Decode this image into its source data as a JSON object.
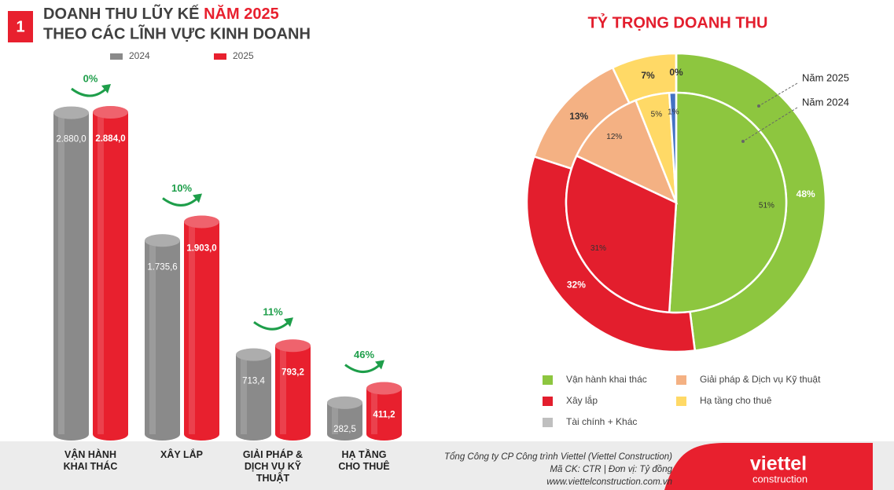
{
  "badge": "1",
  "chart_data": [
    {
      "type": "bar",
      "title": "DOANH THU LŨY KẾ ",
      "title_highlight": "NĂM 2025",
      "subtitle": "THEO CÁC LĨNH VỰC KINH DOANH",
      "categories": [
        "VẬN HÀNH KHAI THÁC",
        "XÂY LẮP",
        "GIẢI PHÁP & DỊCH VỤ KỸ THUẬT",
        "HẠ TẦNG CHO THUÊ"
      ],
      "series": [
        {
          "name": "2024",
          "color": "#8a8a8a",
          "values": [
            2880,
            1735.6,
            713.4,
            282.5
          ],
          "value_labels": [
            "2.880,0",
            "1.735,6",
            "713,4",
            "282,5"
          ]
        },
        {
          "name": "2025",
          "color": "#e8202e",
          "values": [
            2884,
            1903,
            793.2,
            411.2
          ],
          "value_labels": [
            "2.884,0",
            "1.903,0",
            "793,2",
            "411,2"
          ]
        }
      ],
      "growth": {
        "color": "#1e9e4a",
        "values": [
          0,
          10,
          11,
          46
        ],
        "value_labels": [
          "0%",
          "10%",
          "11%",
          "46%"
        ]
      }
    },
    {
      "type": "donut",
      "title": "TỶ TRỌNG DOANH THU",
      "categories": [
        "Vận hành khai thác",
        "Xây lắp",
        "Giải pháp & Dịch vụ Kỹ thuật",
        "Hạ tầng cho thuê",
        "Tài chính + Khác"
      ],
      "colors": [
        "#8dc63f",
        "#e31e2d",
        "#f4b183",
        "#ffd966",
        "#bfbfbf"
      ],
      "series": [
        {
          "name": "Năm 2025",
          "values": [
            48,
            32,
            13,
            7,
            0
          ],
          "value_labels": [
            "48%",
            "32%",
            "13%",
            "7%",
            "0%"
          ],
          "colors": [
            "#8dc63f",
            "#e31e2d",
            "#f4b183",
            "#ffd966",
            "#bfbfbf"
          ]
        },
        {
          "name": "Năm 2024",
          "values": [
            51,
            31,
            12,
            5,
            1
          ],
          "value_labels": [
            "51%",
            "31%",
            "12%",
            "5%",
            "1%"
          ],
          "colors": [
            "#8dc63f",
            "#e31e2d",
            "#f4b183",
            "#ffd966",
            "#4472c4"
          ]
        }
      ]
    }
  ],
  "footer": {
    "lines": [
      "Tổng Công ty CP Công trình Viettel (Viettel Construction)",
      "Mã CK: CTR  |  Đơn vị: Tỷ đồng",
      "www.viettelconstruction.com.vn"
    ],
    "logo": "viettel",
    "logo_sub": "construction"
  }
}
